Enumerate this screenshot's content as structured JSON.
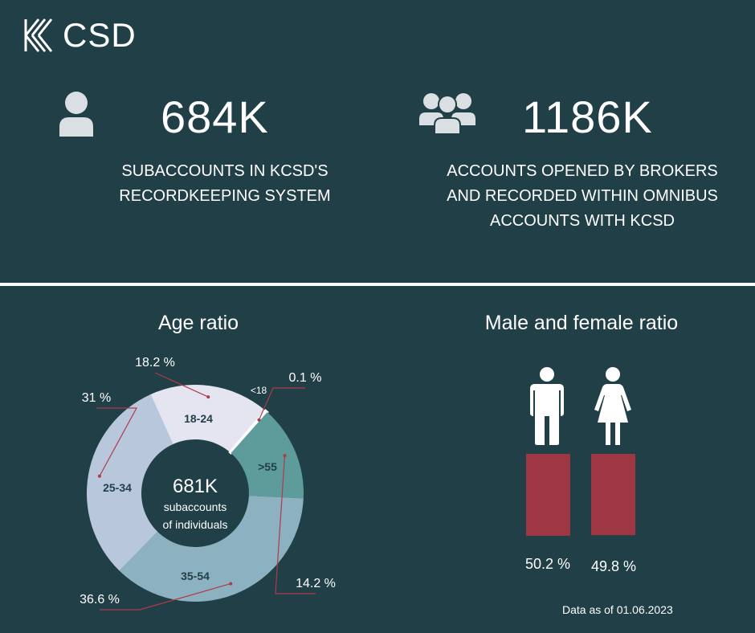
{
  "brand": {
    "logo_text": "CSD"
  },
  "stats": [
    {
      "value": "684K",
      "description_lines": [
        "SUBACCOUNTS IN KCSD'S",
        "RECORDKEEPING SYSTEM"
      ],
      "icon": "person-icon"
    },
    {
      "value": "1186K",
      "description_lines": [
        "ACCOUNTS OPENED BY BROKERS",
        "AND RECORDED WITHIN OMNIBUS",
        "ACCOUNTS WITH KCSD"
      ],
      "icon": "group-icon"
    }
  ],
  "age_section": {
    "title": "Age ratio",
    "center_value": "681K",
    "center_line1": "subaccounts",
    "center_line2": "of individuals"
  },
  "gender_section": {
    "title": "Male and female ratio"
  },
  "footnote": "Data as of 01.06.2023",
  "colors": {
    "background": "#213f47",
    "bar": "#9e3644",
    "leader": "#b03a48"
  },
  "chart_data": [
    {
      "type": "pie",
      "title": "Age ratio",
      "donut": true,
      "categories": [
        "18-24",
        "<18",
        ">55",
        "35-54",
        "25-34"
      ],
      "values": [
        18.2,
        0.1,
        14.2,
        36.6,
        31
      ],
      "value_labels": [
        "18.2 %",
        "0.1 %",
        "14.2 %",
        "36.6 %",
        "31 %"
      ],
      "colors": [
        "#e5e5f1",
        "#ffffff",
        "#5e9b9b",
        "#8cb2c1",
        "#b8c7dc"
      ],
      "center_text": [
        "681K",
        "subaccounts",
        "of individuals"
      ]
    },
    {
      "type": "bar",
      "title": "Male and female ratio",
      "categories": [
        "male-icon",
        "female-icon"
      ],
      "values": [
        50.2,
        49.8
      ],
      "value_labels": [
        "50.2 %",
        "49.8 %"
      ],
      "colors": [
        "#9e3644",
        "#9e3644"
      ]
    }
  ]
}
